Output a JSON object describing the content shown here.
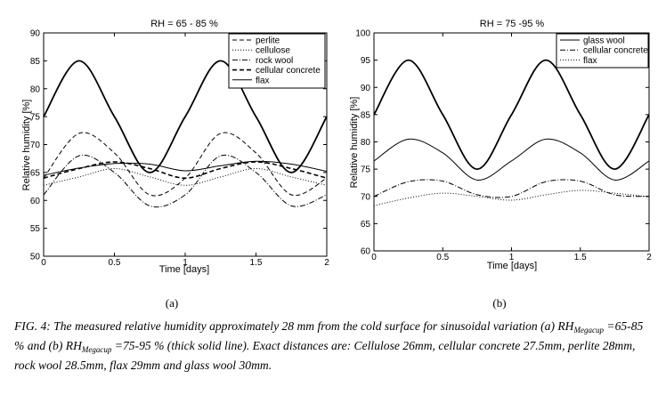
{
  "figure": {
    "caption": {
      "prefix": "FIG. 4: The measured relative humidity approximately 28 mm from the cold surface for sinusoidal variation (a) RH",
      "sub": "Megacup",
      "mid": " =65-85 % and (b)  RH",
      "sub2": "Megacup",
      "suffix": " =75-95 % (thick solid line).  Exact distances are: Cellulose 26mm, cellular concrete 27.5mm, perlite 28mm, rock wool 28.5mm, flax 29mm and glass wool 30mm."
    }
  },
  "chart_data": [
    {
      "type": "line",
      "panel_label": "(a)",
      "title": "RH = 65 - 85 %",
      "xlabel": "Time [days]",
      "ylabel": "Relative humidity [%]",
      "xlim": [
        0,
        2
      ],
      "ylim": [
        50,
        90
      ],
      "xticks": [
        0,
        0.5,
        1,
        1.5,
        2
      ],
      "xtick_labels": [
        "0",
        "0.5",
        "1",
        "1.5",
        "2"
      ],
      "yticks": [
        50,
        55,
        60,
        65,
        70,
        75,
        80,
        85,
        90
      ],
      "ytick_labels": [
        "50",
        "55",
        "60",
        "65",
        "70",
        "75",
        "80",
        "85",
        "90"
      ],
      "grid": false,
      "legend_position": "top-right",
      "series": [
        {
          "name": "perlite",
          "style": "dashed",
          "x": [
            0,
            0.25,
            0.5,
            0.75,
            1,
            1.25,
            1.5,
            1.75,
            2
          ],
          "y": [
            64,
            72,
            68.5,
            61,
            64,
            72,
            68.5,
            61,
            64
          ]
        },
        {
          "name": "cellulose",
          "style": "dotted",
          "x": [
            0,
            0.25,
            0.5,
            0.75,
            1,
            1.25,
            1.5,
            1.75,
            2
          ],
          "y": [
            62.7,
            64.2,
            65.7,
            64.2,
            62.7,
            64.2,
            65.7,
            64.2,
            62.7
          ]
        },
        {
          "name": "rock wool",
          "style": "dashdot",
          "x": [
            0,
            0.25,
            0.5,
            0.75,
            1,
            1.25,
            1.5,
            1.75,
            2
          ],
          "y": [
            61,
            68,
            65,
            59,
            61,
            68,
            65,
            59,
            61
          ]
        },
        {
          "name": "cellular concrete",
          "style": "dashed-bold",
          "x": [
            0,
            0.25,
            0.5,
            0.75,
            1,
            1.25,
            1.5,
            1.75,
            2
          ],
          "y": [
            64,
            65.7,
            66.9,
            65.7,
            64,
            65.7,
            66.9,
            65.7,
            64
          ]
        },
        {
          "name": "flax",
          "style": "solid",
          "x": [
            0,
            0.25,
            0.5,
            0.75,
            1,
            1.25,
            1.5,
            1.75,
            2
          ],
          "y": [
            64.5,
            65.8,
            66.6,
            66.5,
            65.3,
            66.2,
            67,
            66.5,
            65.2
          ]
        },
        {
          "name": "",
          "style": "solid-thick",
          "x": [
            0,
            0.25,
            0.5,
            0.75,
            1,
            1.25,
            1.5,
            1.75,
            2
          ],
          "y": [
            75,
            85,
            75,
            65,
            75,
            85,
            75,
            65,
            75
          ]
        }
      ]
    },
    {
      "type": "line",
      "panel_label": "(b)",
      "title": "RH = 75 -95 %",
      "xlabel": "Time [days]",
      "ylabel": "Relative humidity [%]",
      "xlim": [
        0,
        2
      ],
      "ylim": [
        60,
        100
      ],
      "xticks": [
        0,
        0.5,
        1,
        1.5,
        2
      ],
      "xtick_labels": [
        "0",
        "0.5",
        "1",
        "1.5",
        "2"
      ],
      "yticks": [
        60,
        65,
        70,
        75,
        80,
        85,
        90,
        95,
        100
      ],
      "ytick_labels": [
        "60",
        "65",
        "70",
        "75",
        "80",
        "85",
        "90",
        "95",
        "100"
      ],
      "grid": false,
      "legend_position": "top-right",
      "series": [
        {
          "name": "glass wool",
          "style": "solid",
          "x": [
            0,
            0.25,
            0.5,
            0.75,
            1,
            1.25,
            1.5,
            1.75,
            2
          ],
          "y": [
            76.5,
            80.5,
            78,
            73,
            76.5,
            80.5,
            78,
            73,
            76.5
          ]
        },
        {
          "name": "cellular concrete",
          "style": "dashdot",
          "x": [
            0,
            0.25,
            0.5,
            0.75,
            1,
            1.25,
            1.5,
            1.75,
            2
          ],
          "y": [
            70,
            72.7,
            72.8,
            70.3,
            70,
            72.7,
            72.8,
            70.3,
            70
          ]
        },
        {
          "name": "flax",
          "style": "dotted",
          "x": [
            0,
            0.25,
            0.5,
            0.75,
            1,
            1.25,
            1.5,
            1.75,
            2
          ],
          "y": [
            68.3,
            69.7,
            70.6,
            70,
            69.3,
            70.3,
            71.1,
            70.6,
            69.9
          ]
        },
        {
          "name": "",
          "style": "solid-thick",
          "x": [
            0,
            0.25,
            0.5,
            0.75,
            1,
            1.25,
            1.5,
            1.75,
            2
          ],
          "y": [
            85,
            95,
            85,
            75,
            85,
            95,
            85,
            75,
            85
          ]
        }
      ]
    }
  ]
}
